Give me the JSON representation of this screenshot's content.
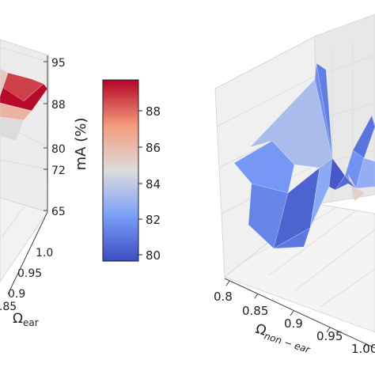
{
  "chart_data": [
    {
      "type": "surface3d",
      "panel": "left",
      "zlabel": "",
      "z_ticks": [
        "95",
        "88",
        "80",
        "72",
        "65"
      ],
      "y_ticks": [
        "1.0",
        "0.95",
        "0.9",
        "0.85"
      ],
      "ylabel": "Ω",
      "ylabel_sub": "ear",
      "zlim": [
        65,
        95
      ],
      "grid": true,
      "colorbar": {
        "label": "mA (%)",
        "ticks": [
          "88",
          "86",
          "84",
          "82",
          "80"
        ],
        "range": [
          79.5,
          89.5
        ],
        "colormap": "coolwarm",
        "colors": {
          "low": "#3b4cc0",
          "mid": "#dddcdc",
          "high": "#b40426"
        }
      },
      "faces": [
        {
          "value": 88.5
        },
        {
          "value": 89.4
        },
        {
          "value": 86.0
        },
        {
          "value": 84.5
        },
        {
          "value": 85.2
        }
      ]
    },
    {
      "type": "surface3d",
      "panel": "right",
      "x_ticks": [
        "0.8",
        "0.85",
        "0.9",
        "0.95",
        "1.00"
      ],
      "xlabel": "Ω",
      "xlabel_sub": "non − ear",
      "grid": true,
      "faces": [
        {
          "value": 81.8
        },
        {
          "value": 81.2
        },
        {
          "value": 80.2
        },
        {
          "value": 80.8
        },
        {
          "value": 83.2
        },
        {
          "value": 81.5
        },
        {
          "value": 81.0
        },
        {
          "value": 82.4
        },
        {
          "value": 79.9
        },
        {
          "value": 81.6
        },
        {
          "value": 80.7
        },
        {
          "value": 82.6
        },
        {
          "value": 85.0
        },
        {
          "value": 80.4
        }
      ]
    }
  ]
}
